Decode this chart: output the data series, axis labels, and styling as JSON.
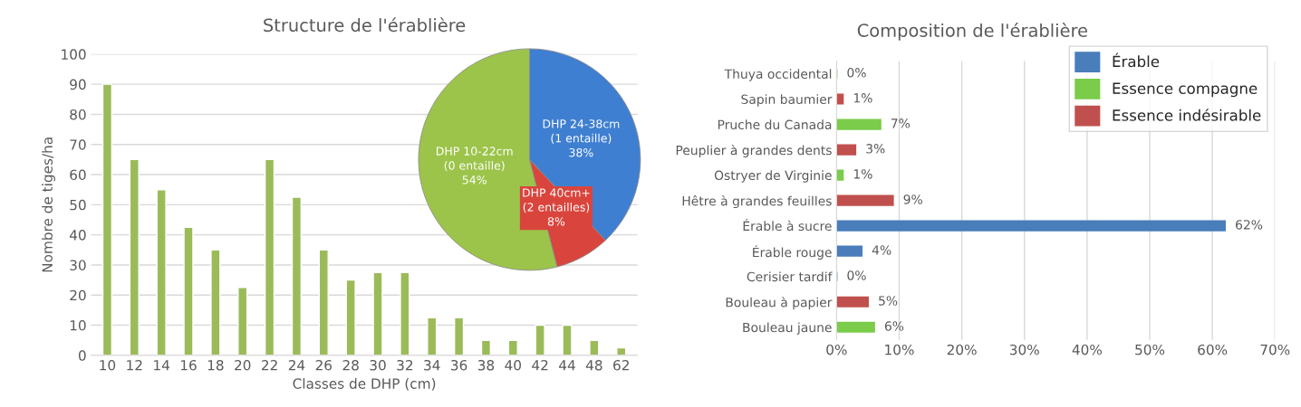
{
  "chart_data": [
    {
      "type": "bar",
      "title": "Structure de l'érablière",
      "xlabel": "Classes de DHP (cm)",
      "ylabel": "Nombre de tiges/ha",
      "categories": [
        "10",
        "12",
        "14",
        "16",
        "18",
        "20",
        "22",
        "24",
        "26",
        "28",
        "30",
        "32",
        "34",
        "36",
        "38",
        "40",
        "42",
        "44",
        "48",
        "62"
      ],
      "values": [
        90,
        65,
        55,
        42.5,
        35,
        22.5,
        65,
        52.5,
        35,
        25,
        27.5,
        27.5,
        12.5,
        12.5,
        5,
        5,
        10,
        10,
        5,
        2.5
      ],
      "color": "#9bbb59",
      "ylim": [
        0,
        100
      ],
      "yticks": [
        0,
        10,
        20,
        30,
        40,
        50,
        60,
        70,
        80,
        90,
        100
      ],
      "grid": "y"
    },
    {
      "type": "pie",
      "categories": [
        "DHP 24-38cm\n(1 entaille)",
        "DHP 40cm+\n(2 entailles)",
        "DHP 10-22cm\n(0 entaille)"
      ],
      "values": [
        38,
        8,
        54
      ],
      "colors": [
        "#3f7fd1",
        "#d9453d",
        "#9cc44a"
      ],
      "value_labels": [
        "38%",
        "8%",
        "54%"
      ]
    },
    {
      "type": "bar",
      "orientation": "horizontal",
      "title": "Composition de l'érablière",
      "categories": [
        "Thuya occidental",
        "Sapin baumier",
        "Pruche du Canada",
        "Peuplier à grandes dents",
        "Ostryer de Virginie",
        "Hêtre à grandes feuilles",
        "Érable à sucre",
        "Érable rouge",
        "Cerisier tardif",
        "Bouleau à papier",
        "Bouleau jaune"
      ],
      "series": [
        {
          "name": "Érable",
          "color": "#4a7ebb",
          "values": [
            null,
            null,
            null,
            null,
            null,
            null,
            62,
            4,
            0,
            null,
            null
          ],
          "value_labels": [
            null,
            null,
            null,
            null,
            null,
            null,
            "62%",
            "4%",
            "0%",
            null,
            null
          ]
        },
        {
          "name": "Essence compagne",
          "color": "#7acc4a",
          "values": [
            0,
            null,
            7,
            null,
            1,
            null,
            null,
            null,
            null,
            null,
            6
          ],
          "value_labels": [
            "0%",
            null,
            "7%",
            null,
            "1%",
            null,
            null,
            null,
            null,
            null,
            "6%"
          ]
        },
        {
          "name": "Essence indésirable",
          "color": "#c0504d",
          "values": [
            null,
            1,
            null,
            3,
            null,
            9,
            null,
            null,
            null,
            5,
            null
          ],
          "value_labels": [
            null,
            "1%",
            null,
            "3%",
            null,
            "9%",
            null,
            null,
            null,
            "5%",
            null
          ]
        }
      ],
      "xlim": [
        0,
        70
      ],
      "xticks": [
        {
          "value": 0,
          "label": "0%"
        },
        {
          "value": 10,
          "label": "10%"
        },
        {
          "value": 20,
          "label": "20%"
        },
        {
          "value": 30,
          "label": "30%"
        },
        {
          "value": 40,
          "label": "40%"
        },
        {
          "value": 50,
          "label": "50%"
        },
        {
          "value": 60,
          "label": "60%"
        },
        {
          "value": 70,
          "label": "70%"
        }
      ],
      "grid": "x",
      "legend": "top right"
    }
  ]
}
